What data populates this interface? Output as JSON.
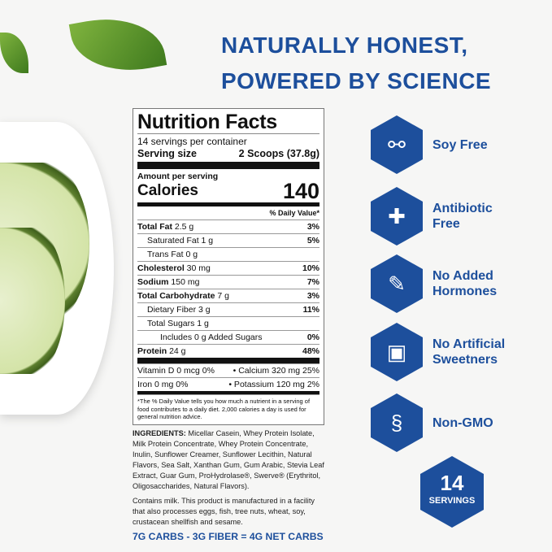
{
  "headline": [
    "NATURALLY HONEST,",
    "POWERED BY SCIENCE"
  ],
  "label": {
    "title": "Nutrition Facts",
    "servings": "14 servings per container",
    "serving_size_label": "Serving size",
    "serving_size_value": "2 Scoops (37.8g)",
    "amount": "Amount per serving",
    "calories_label": "Calories",
    "calories": "140",
    "dv_header": "% Daily Value*",
    "rows": [
      {
        "b": "Total Fat",
        "v": " 2.5 g",
        "p": "3%",
        "lvl": 0
      },
      {
        "b": "",
        "v": "Saturated Fat 1 g",
        "p": "5%",
        "lvl": 1
      },
      {
        "b": "",
        "v": "Trans Fat 0 g",
        "p": "",
        "lvl": 1
      },
      {
        "b": "Cholesterol",
        "v": " 30 mg",
        "p": "10%",
        "lvl": 0
      },
      {
        "b": "Sodium",
        "v": " 150 mg",
        "p": "7%",
        "lvl": 0
      },
      {
        "b": "Total Carbohydrate",
        "v": " 7 g",
        "p": "3%",
        "lvl": 0
      },
      {
        "b": "",
        "v": "Dietary Fiber 3 g",
        "p": "11%",
        "lvl": 1
      },
      {
        "b": "",
        "v": "Total Sugars 1 g",
        "p": "",
        "lvl": 1
      },
      {
        "b": "",
        "v": "Includes 0 g Added Sugars",
        "p": "0%",
        "lvl": 2
      },
      {
        "b": "Protein",
        "v": " 24 g",
        "p": "48%",
        "lvl": 0
      }
    ],
    "vit1a": "Vitamin D 0 mcg 0%",
    "vit1b": "•   Calcium 320 mg 25%",
    "vit2a": "Iron 0 mg 0%",
    "vit2b": "•  Potassium 120 mg 2%",
    "footnote": "*The % Daily Value tells you how much a nutrient in a serving of food contributes to a daily diet. 2,000 calories a day is used for general nutrition advice."
  },
  "ingredients_label": "INGREDIENTS:",
  "ingredients": " Micellar Casein, Whey Protein Isolate, Milk Protein Concentrate, Whey Protein Concentrate, Inulin, Sunflower Creamer, Sunflower Lecithin, Natural Flavors, Sea Salt, Xanthan Gum, Gum Arabic, Stevia Leaf Extract, Guar Gum, ProHydrolase®, Swerve® (Erythritol, Oligosaccharides, Natural Flavors).",
  "allergen": "Contains milk. This product is manufactured in a facility that also processes eggs, fish, tree nuts, wheat, soy, crustacean shellfish and sesame.",
  "net_carbs": "7G CARBS - 3G FIBER = 4G NET CARBS",
  "features": [
    {
      "l1": "Soy Free",
      "l2": "",
      "icon": "no-soy-icon"
    },
    {
      "l1": "Antibiotic",
      "l2": "Free",
      "icon": "no-antibiotic-icon"
    },
    {
      "l1": "No Added",
      "l2": "Hormones",
      "icon": "no-syringe-icon"
    },
    {
      "l1": "No Artificial",
      "l2": "Sweetners",
      "icon": "no-sweetener-icon"
    },
    {
      "l1": "Non-GMO",
      "l2": "",
      "icon": "no-dna-icon"
    }
  ],
  "badge": {
    "num": "14",
    "text": "SERVINGS"
  },
  "colors": {
    "brand_blue": "#1d4f9c"
  }
}
